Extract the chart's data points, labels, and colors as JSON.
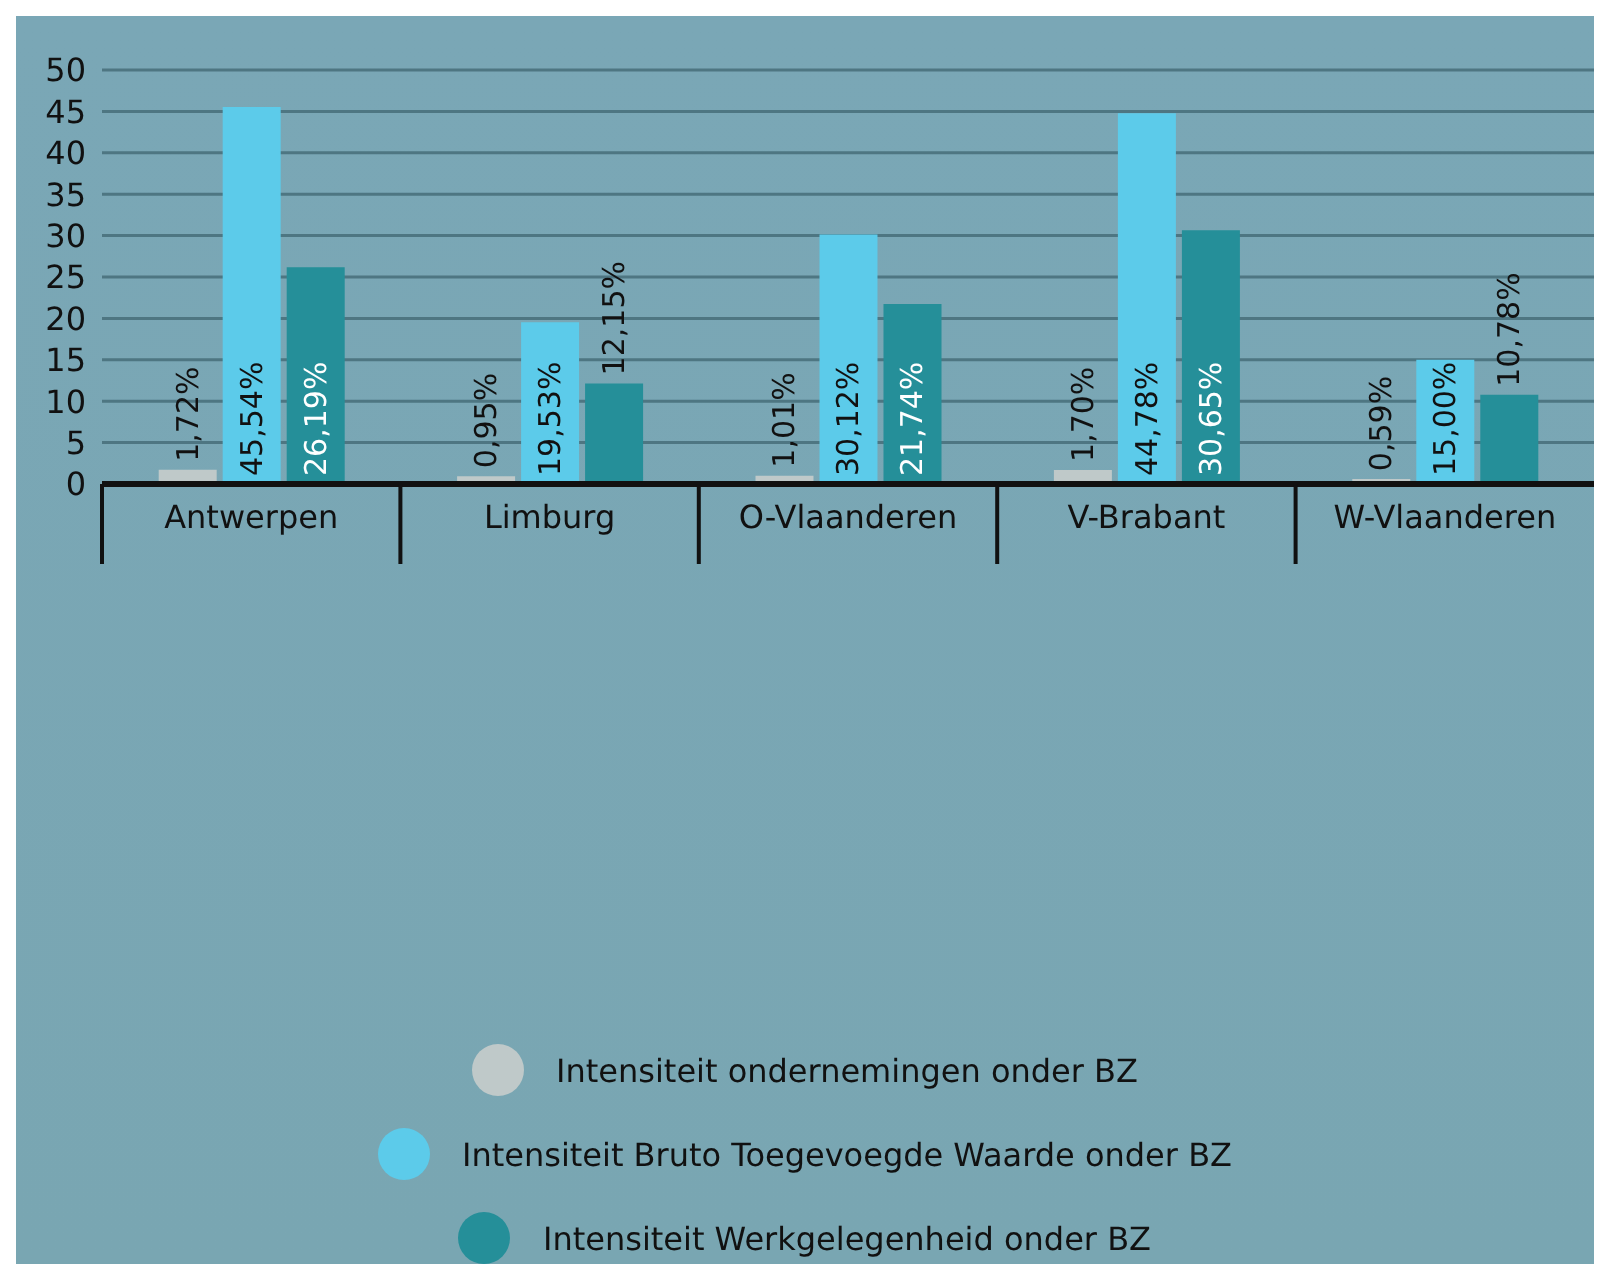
{
  "chart_data": {
    "type": "bar",
    "categories": [
      "Antwerpen",
      "Limburg",
      "O-Vlaanderen",
      "V-Brabant",
      "W-Vlaanderen"
    ],
    "series": [
      {
        "name": "Intensiteit ondernemingen onder BZ",
        "color": "#bfc9c9",
        "values": [
          1.72,
          0.95,
          1.01,
          1.7,
          0.59
        ],
        "value_labels": [
          "1,72%",
          "0,95%",
          "1,01%",
          "1,70%",
          "0,59%"
        ]
      },
      {
        "name": "Intensiteit Bruto Toegevoegde Waarde onder BZ",
        "color": "#5ccbea",
        "values": [
          45.54,
          19.53,
          30.12,
          44.78,
          15.0
        ],
        "value_labels": [
          "45,54%",
          "19,53%",
          "30,12%",
          "44,78%",
          "15,00%"
        ]
      },
      {
        "name": "Intensiteit Werkgelegenheid onder BZ",
        "color": "#258f99",
        "values": [
          26.19,
          12.15,
          21.74,
          30.65,
          10.78
        ],
        "value_labels": [
          "26,19%",
          "12,15%",
          "21,74%",
          "30,65%",
          "10,78%"
        ]
      }
    ],
    "ylim": [
      0,
      50
    ],
    "yticks": [
      0,
      5,
      10,
      15,
      20,
      25,
      30,
      35,
      40,
      45,
      50
    ],
    "grid": "y",
    "legend": "bottom"
  }
}
